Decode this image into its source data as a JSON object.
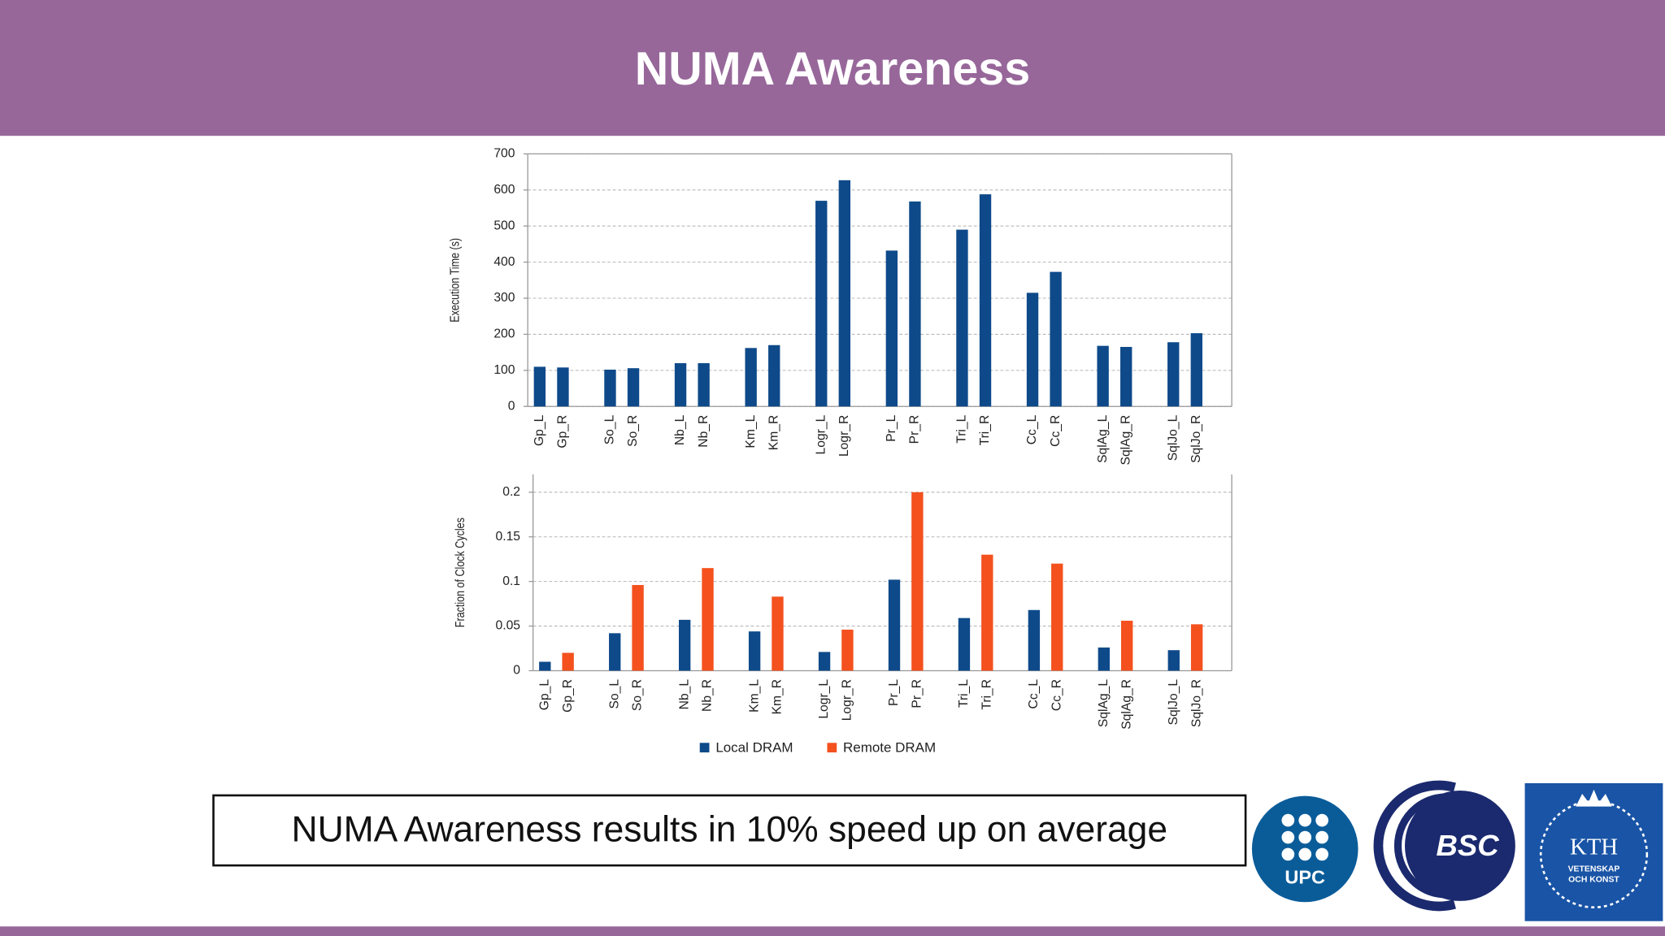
{
  "title": "NUMA Awareness",
  "caption": "NUMA Awareness results in 10% speed up on average",
  "logos": [
    "UPC",
    "BSC",
    "KTH",
    "VETENSKAP",
    "OCH KONST"
  ],
  "chart_data": [
    {
      "type": "bar",
      "ylabel": "Execution Time (s)",
      "categories": [
        "Gp_L",
        "Gp_R",
        "So_L",
        "So_R",
        "Nb_L",
        "Nb_R",
        "Km_L",
        "Km_R",
        "Logr_L",
        "Logr_R",
        "Pr_L",
        "Pr_R",
        "Tri_L",
        "Tri_R",
        "Cc_L",
        "Cc_R",
        "SqlAg_L",
        "SqlAg_R",
        "SqlJo_L",
        "SqlJo_R"
      ],
      "values": [
        110,
        108,
        102,
        106,
        120,
        120,
        162,
        170,
        570,
        627,
        432,
        568,
        490,
        588,
        315,
        373,
        168,
        165,
        178,
        203
      ],
      "color": "#0e4a8a",
      "ylim": [
        0,
        700
      ],
      "yticks": [
        0,
        100,
        200,
        300,
        400,
        500,
        600,
        700
      ],
      "grid": true
    },
    {
      "type": "bar",
      "ylabel": "Fraction of Clock Cycles",
      "categories": [
        "Gp_L",
        "Gp_R",
        "So_L",
        "So_R",
        "Nb_L",
        "Nb_R",
        "Km_L",
        "Km_R",
        "Logr_L",
        "Logr_R",
        "Pr_L",
        "Pr_R",
        "Tri_L",
        "Tri_R",
        "Cc_L",
        "Cc_R",
        "SqlAg_L",
        "SqlAg_R",
        "SqlJo_L",
        "SqlJo_R"
      ],
      "series": [
        {
          "name": "Local DRAM",
          "color": "#0e4a8a",
          "values": [
            0.01,
            null,
            0.042,
            null,
            0.057,
            null,
            0.044,
            null,
            0.021,
            null,
            0.102,
            null,
            0.059,
            null,
            0.068,
            null,
            0.026,
            null,
            0.023,
            null
          ]
        },
        {
          "name": "Remote DRAM",
          "color": "#f4511e",
          "values": [
            null,
            0.02,
            null,
            0.096,
            null,
            0.115,
            null,
            0.083,
            null,
            0.046,
            null,
            0.2,
            null,
            0.13,
            null,
            0.12,
            null,
            0.056,
            null,
            0.052
          ]
        }
      ],
      "ylim": [
        0,
        0.22
      ],
      "yticks": [
        0,
        0.05,
        0.1,
        0.15,
        0.2
      ],
      "grid": true,
      "legend": "bottom"
    }
  ]
}
